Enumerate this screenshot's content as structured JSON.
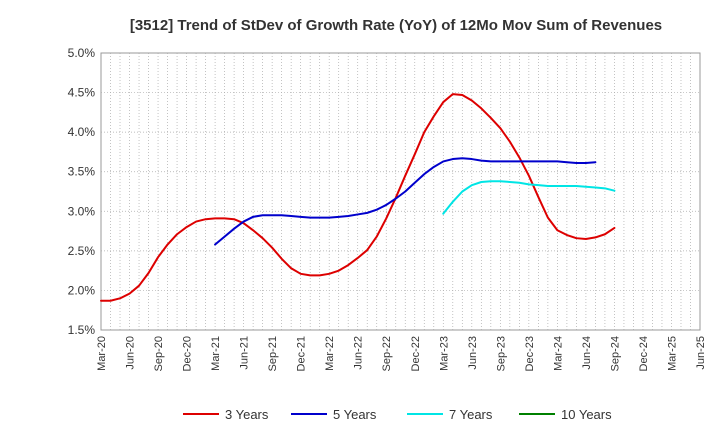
{
  "chart_data": {
    "type": "line",
    "title": "[3512]  Trend of StDev of Growth Rate (YoY) of 12Mo Mov Sum of Revenues",
    "xlabel": "",
    "ylabel": "",
    "ylim": [
      1.5,
      5.0
    ],
    "y_ticks": [
      "1.5%",
      "2.0%",
      "2.5%",
      "3.0%",
      "3.5%",
      "4.0%",
      "4.5%",
      "5.0%"
    ],
    "x_tick_labels": [
      "Mar-20",
      "Jun-20",
      "Sep-20",
      "Dec-20",
      "Mar-21",
      "Jun-21",
      "Sep-21",
      "Dec-21",
      "Mar-22",
      "Jun-22",
      "Sep-22",
      "Dec-22",
      "Mar-23",
      "Jun-23",
      "Sep-23",
      "Dec-23",
      "Mar-24",
      "Jun-24",
      "Sep-24",
      "Dec-24",
      "Mar-25",
      "Jun-25"
    ],
    "x_start": "Mar-20",
    "grid": true,
    "legend_position": "bottom",
    "series": [
      {
        "name": "3 Years",
        "color": "#dd0000",
        "start_index": 0,
        "values": [
          1.87,
          1.87,
          1.9,
          1.96,
          2.06,
          2.22,
          2.42,
          2.58,
          2.71,
          2.8,
          2.87,
          2.9,
          2.91,
          2.91,
          2.9,
          2.85,
          2.76,
          2.66,
          2.54,
          2.4,
          2.28,
          2.21,
          2.19,
          2.19,
          2.21,
          2.25,
          2.32,
          2.41,
          2.51,
          2.68,
          2.91,
          3.17,
          3.45,
          3.72,
          4.0,
          4.2,
          4.38,
          4.48,
          4.47,
          4.4,
          4.3,
          4.18,
          4.05,
          3.88,
          3.68,
          3.45,
          3.18,
          2.92,
          2.76,
          2.7,
          2.66,
          2.65,
          2.67,
          2.71,
          2.79
        ]
      },
      {
        "name": "5 Years",
        "color": "#0000cc",
        "start_index": 12,
        "values": [
          2.58,
          2.68,
          2.78,
          2.87,
          2.93,
          2.95,
          2.95,
          2.95,
          2.94,
          2.93,
          2.92,
          2.92,
          2.92,
          2.93,
          2.94,
          2.96,
          2.98,
          3.02,
          3.08,
          3.16,
          3.25,
          3.36,
          3.47,
          3.56,
          3.63,
          3.66,
          3.67,
          3.66,
          3.64,
          3.63,
          3.63,
          3.63,
          3.63,
          3.63,
          3.63,
          3.63,
          3.63,
          3.62,
          3.61,
          3.61,
          3.62
        ]
      },
      {
        "name": "7 Years",
        "color": "#00e5e5",
        "start_index": 36,
        "values": [
          2.97,
          3.12,
          3.25,
          3.33,
          3.37,
          3.38,
          3.38,
          3.37,
          3.36,
          3.34,
          3.33,
          3.32,
          3.32,
          3.32,
          3.32,
          3.31,
          3.3,
          3.29,
          3.26
        ]
      },
      {
        "name": "10 Years",
        "color": "#008000",
        "start_index": 0,
        "values": []
      }
    ]
  }
}
